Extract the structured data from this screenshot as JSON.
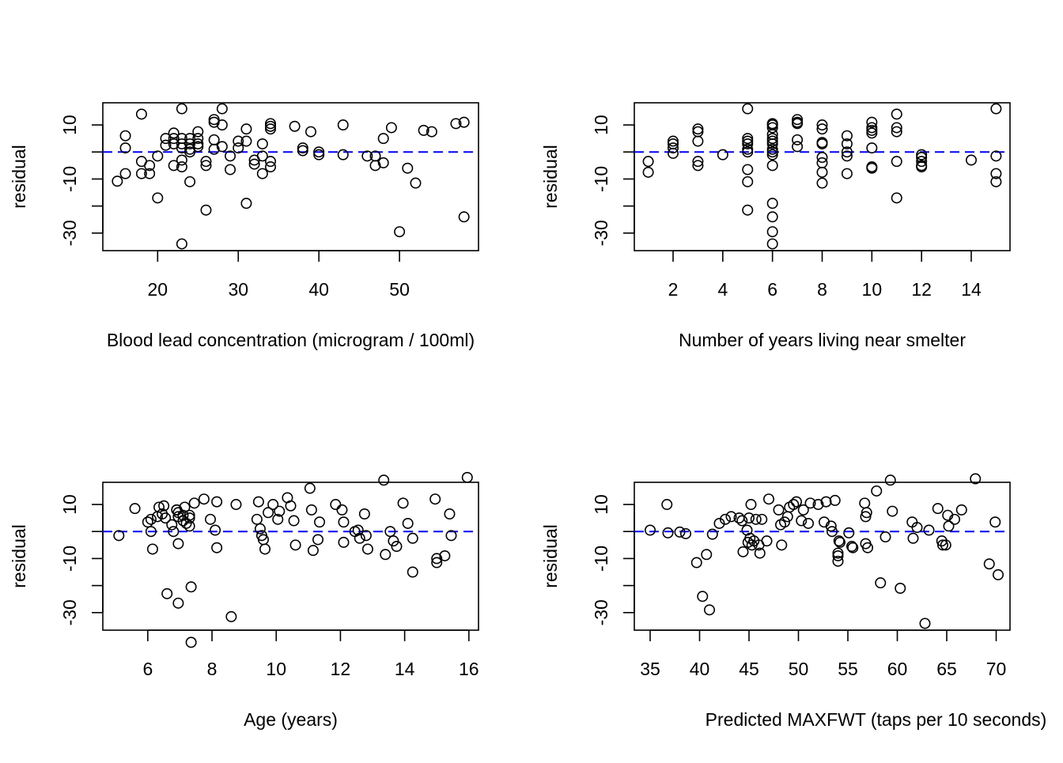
{
  "chart_data": [
    {
      "type": "scatter",
      "xlabel": "Blood lead concentration (microgram / 100ml)",
      "ylabel": "residual",
      "xlim": [
        13.2,
        59.8
      ],
      "ylim": [
        -36.5,
        18.2
      ],
      "xticks": [
        20,
        30,
        40,
        50
      ],
      "yticks": [
        10,
        -10,
        -30
      ],
      "grid": false,
      "reference_line": {
        "y": 0,
        "style": "dashed",
        "color": "#0000ff"
      },
      "points": [
        [
          15,
          -10.8
        ],
        [
          16,
          6
        ],
        [
          16,
          1.5
        ],
        [
          16,
          -8
        ],
        [
          18,
          14
        ],
        [
          18,
          -3.5
        ],
        [
          18,
          -8
        ],
        [
          19,
          -5
        ],
        [
          19,
          -8
        ],
        [
          20,
          -17
        ],
        [
          20,
          -1.5
        ],
        [
          21,
          5
        ],
        [
          21,
          2.5
        ],
        [
          22,
          7
        ],
        [
          22,
          5
        ],
        [
          22,
          3
        ],
        [
          22,
          -5
        ],
        [
          23,
          16
        ],
        [
          23,
          5
        ],
        [
          23,
          3
        ],
        [
          23,
          1.5
        ],
        [
          23,
          -3
        ],
        [
          23,
          -5.5
        ],
        [
          23,
          -34
        ],
        [
          24,
          5
        ],
        [
          24,
          3
        ],
        [
          24,
          1
        ],
        [
          24,
          0
        ],
        [
          24,
          -11
        ],
        [
          25,
          7.5
        ],
        [
          25,
          5
        ],
        [
          25,
          3
        ],
        [
          25,
          2
        ],
        [
          26,
          -3.5
        ],
        [
          26,
          -5
        ],
        [
          26,
          -21.5
        ],
        [
          27,
          12
        ],
        [
          27,
          11
        ],
        [
          27,
          4.5
        ],
        [
          27,
          1
        ],
        [
          28,
          16
        ],
        [
          28,
          10
        ],
        [
          28,
          2
        ],
        [
          29,
          -1.5
        ],
        [
          29,
          -6.5
        ],
        [
          30,
          4
        ],
        [
          30,
          1.5
        ],
        [
          31,
          8.5
        ],
        [
          31,
          4
        ],
        [
          31,
          -19
        ],
        [
          32,
          -3
        ],
        [
          32,
          -4.5
        ],
        [
          33,
          3
        ],
        [
          33,
          -1.5
        ],
        [
          33,
          -8
        ],
        [
          34,
          10.5
        ],
        [
          34,
          9.5
        ],
        [
          34,
          8.5
        ],
        [
          34,
          -3.5
        ],
        [
          34,
          -5.5
        ],
        [
          37,
          9.5
        ],
        [
          38,
          1.5
        ],
        [
          38,
          0.5
        ],
        [
          39,
          7.5
        ],
        [
          40,
          0
        ],
        [
          40,
          -1
        ],
        [
          43,
          10
        ],
        [
          43,
          -1
        ],
        [
          46,
          -1.5
        ],
        [
          47,
          -1.5
        ],
        [
          47,
          -5
        ],
        [
          48,
          5
        ],
        [
          48,
          -4
        ],
        [
          49,
          9
        ],
        [
          50,
          -29.5
        ],
        [
          51,
          -6
        ],
        [
          52,
          -11.5
        ],
        [
          53,
          8
        ],
        [
          54,
          7.5
        ],
        [
          57,
          10.5
        ],
        [
          58,
          11
        ],
        [
          58,
          -24
        ]
      ]
    },
    {
      "type": "scatter",
      "xlabel": "Number of years living near smelter",
      "ylabel": "residual",
      "xlim": [
        0.44,
        15.56
      ],
      "ylim": [
        -36.5,
        18.2
      ],
      "xticks": [
        2,
        4,
        6,
        8,
        10,
        12,
        14
      ],
      "yticks": [
        10,
        -10,
        -30
      ],
      "grid": false,
      "reference_line": {
        "y": 0,
        "style": "dashed",
        "color": "#0000ff"
      },
      "points": [
        [
          1,
          -3.5
        ],
        [
          1,
          -7.5
        ],
        [
          2,
          4
        ],
        [
          2,
          3
        ],
        [
          2,
          1.5
        ],
        [
          2,
          -0.5
        ],
        [
          3,
          8.5
        ],
        [
          3,
          7.5
        ],
        [
          3,
          4
        ],
        [
          3,
          -3.5
        ],
        [
          3,
          -5
        ],
        [
          4,
          -1
        ],
        [
          5,
          16
        ],
        [
          5,
          5
        ],
        [
          5,
          4
        ],
        [
          5,
          3
        ],
        [
          5,
          1
        ],
        [
          5,
          0
        ],
        [
          5,
          -6.5
        ],
        [
          5,
          -11
        ],
        [
          5,
          -21.5
        ],
        [
          6,
          10.5
        ],
        [
          6,
          10
        ],
        [
          6,
          9
        ],
        [
          6,
          6.5
        ],
        [
          6,
          5
        ],
        [
          6,
          4
        ],
        [
          6,
          3
        ],
        [
          6,
          1
        ],
        [
          6,
          0
        ],
        [
          6,
          -1
        ],
        [
          6,
          -5
        ],
        [
          6,
          -19
        ],
        [
          6,
          -24
        ],
        [
          6,
          -29.5
        ],
        [
          6,
          -34
        ],
        [
          7,
          12
        ],
        [
          7,
          11
        ],
        [
          7,
          10.5
        ],
        [
          7,
          4.5
        ],
        [
          7,
          2
        ],
        [
          8,
          10
        ],
        [
          8,
          8.5
        ],
        [
          8,
          3.5
        ],
        [
          8,
          3
        ],
        [
          8,
          -2
        ],
        [
          8,
          -4
        ],
        [
          8,
          -7.5
        ],
        [
          8,
          -11.5
        ],
        [
          9,
          6
        ],
        [
          9,
          3
        ],
        [
          9,
          0
        ],
        [
          9,
          -1.5
        ],
        [
          9,
          -8
        ],
        [
          10,
          11
        ],
        [
          10,
          9
        ],
        [
          10,
          8
        ],
        [
          10,
          7
        ],
        [
          10,
          1.5
        ],
        [
          10,
          -5.5
        ],
        [
          10,
          -6
        ],
        [
          11,
          14
        ],
        [
          11,
          9
        ],
        [
          11,
          7.5
        ],
        [
          11,
          -3.5
        ],
        [
          11,
          -17
        ],
        [
          12,
          -1
        ],
        [
          12,
          -2
        ],
        [
          12,
          -3.5
        ],
        [
          12,
          -5
        ],
        [
          12,
          -5.5
        ],
        [
          14,
          -3
        ],
        [
          15,
          16
        ],
        [
          15,
          -1.5
        ],
        [
          15,
          -8
        ],
        [
          15,
          -11
        ]
      ]
    },
    {
      "type": "scatter",
      "xlabel": "Age (years)",
      "ylabel": "residual",
      "xlim": [
        4.6,
        16.3
      ],
      "ylim": [
        -36.5,
        18.2
      ],
      "xticks": [
        6,
        8,
        10,
        12,
        14,
        16
      ],
      "yticks": [
        10,
        -10,
        -30
      ],
      "grid": false,
      "reference_line": {
        "y": 0,
        "style": "dashed",
        "color": "#0000ff"
      },
      "points": [
        [
          5.1,
          -1.5
        ],
        [
          5.6,
          8.5
        ],
        [
          6.0,
          3.5
        ],
        [
          6.1,
          4.5
        ],
        [
          6.1,
          0
        ],
        [
          6.15,
          -6.5
        ],
        [
          6.3,
          5.5
        ],
        [
          6.35,
          9
        ],
        [
          6.45,
          6.5
        ],
        [
          6.5,
          9.5
        ],
        [
          6.55,
          5
        ],
        [
          6.6,
          -23
        ],
        [
          6.75,
          2.5
        ],
        [
          6.8,
          0
        ],
        [
          6.9,
          8
        ],
        [
          6.9,
          8
        ],
        [
          6.95,
          5.5
        ],
        [
          6.95,
          7
        ],
        [
          6.95,
          -4.5
        ],
        [
          6.95,
          -26.5
        ],
        [
          7.1,
          4
        ],
        [
          7.1,
          6
        ],
        [
          7.15,
          9
        ],
        [
          7.2,
          3
        ],
        [
          7.3,
          6
        ],
        [
          7.3,
          5
        ],
        [
          7.3,
          2
        ],
        [
          7.35,
          -20.5
        ],
        [
          7.35,
          -41
        ],
        [
          7.45,
          10.5
        ],
        [
          7.75,
          12
        ],
        [
          7.95,
          4.5
        ],
        [
          8.1,
          0.5
        ],
        [
          8.15,
          11
        ],
        [
          8.15,
          -6
        ],
        [
          8.6,
          -31.5
        ],
        [
          8.75,
          10
        ],
        [
          9.4,
          4.5
        ],
        [
          9.45,
          11
        ],
        [
          9.5,
          1
        ],
        [
          9.55,
          -1.5
        ],
        [
          9.6,
          -3
        ],
        [
          9.65,
          -6.5
        ],
        [
          9.75,
          7
        ],
        [
          9.9,
          10
        ],
        [
          10.05,
          4.5
        ],
        [
          10.1,
          7.5
        ],
        [
          10.35,
          12.5
        ],
        [
          10.45,
          9.5
        ],
        [
          10.55,
          4
        ],
        [
          10.6,
          -5
        ],
        [
          11.05,
          16
        ],
        [
          11.1,
          8
        ],
        [
          11.15,
          -7
        ],
        [
          11.3,
          -3
        ],
        [
          11.35,
          3.5
        ],
        [
          11.85,
          10
        ],
        [
          12.05,
          8
        ],
        [
          12.1,
          3.5
        ],
        [
          12.1,
          -4
        ],
        [
          12.45,
          0
        ],
        [
          12.55,
          0.5
        ],
        [
          12.6,
          -2.5
        ],
        [
          12.75,
          6.5
        ],
        [
          12.8,
          -1.5
        ],
        [
          12.85,
          -6.5
        ],
        [
          13.35,
          19
        ],
        [
          13.4,
          -8.5
        ],
        [
          13.55,
          0
        ],
        [
          13.65,
          -3.5
        ],
        [
          13.75,
          -5.5
        ],
        [
          13.95,
          10.5
        ],
        [
          14.1,
          3
        ],
        [
          14.25,
          -2.5
        ],
        [
          14.25,
          -15
        ],
        [
          14.95,
          12
        ],
        [
          15.0,
          -10
        ],
        [
          15.0,
          -11.5
        ],
        [
          15.25,
          -9
        ],
        [
          15.4,
          6.5
        ],
        [
          15.45,
          -1.5
        ],
        [
          15.95,
          20
        ]
      ]
    },
    {
      "type": "scatter",
      "xlabel": "Predicted MAXFWT (taps per 10 seconds)",
      "ylabel": "residual",
      "xlim": [
        33.4,
        71.4
      ],
      "ylim": [
        -36.5,
        18.2
      ],
      "xticks": [
        35,
        40,
        45,
        50,
        55,
        60,
        65,
        70
      ],
      "yticks": [
        10,
        -10,
        -30
      ],
      "grid": false,
      "reference_line": {
        "y": 0,
        "style": "dashed",
        "color": "#0000ff"
      },
      "points": [
        [
          35.0,
          0.5
        ],
        [
          36.7,
          10
        ],
        [
          36.8,
          -0.5
        ],
        [
          38.0,
          -0.2
        ],
        [
          38.6,
          -0.8
        ],
        [
          39.7,
          -11.5
        ],
        [
          40.3,
          -24
        ],
        [
          40.7,
          -8.5
        ],
        [
          41.0,
          -29
        ],
        [
          41.3,
          -1
        ],
        [
          42.0,
          3
        ],
        [
          42.6,
          4.5
        ],
        [
          43.2,
          5.5
        ],
        [
          44.0,
          5
        ],
        [
          44.3,
          4
        ],
        [
          44.4,
          -7.5
        ],
        [
          44.8,
          0.5
        ],
        [
          44.9,
          -4
        ],
        [
          45.0,
          5
        ],
        [
          45.1,
          -2.5
        ],
        [
          45.2,
          10
        ],
        [
          45.3,
          -5
        ],
        [
          45.5,
          -3.5
        ],
        [
          45.7,
          4.5
        ],
        [
          46.0,
          -5
        ],
        [
          46.1,
          -8
        ],
        [
          46.3,
          4.5
        ],
        [
          46.8,
          -3.5
        ],
        [
          47.0,
          12
        ],
        [
          48.0,
          8
        ],
        [
          48.2,
          2.5
        ],
        [
          48.3,
          -5
        ],
        [
          48.6,
          3.5
        ],
        [
          48.9,
          5.5
        ],
        [
          49.1,
          9
        ],
        [
          49.5,
          10
        ],
        [
          49.8,
          11
        ],
        [
          50.3,
          4
        ],
        [
          50.5,
          8
        ],
        [
          51.0,
          3
        ],
        [
          51.2,
          10.5
        ],
        [
          52.0,
          10
        ],
        [
          52.6,
          3.5
        ],
        [
          52.8,
          11
        ],
        [
          53.3,
          2
        ],
        [
          53.4,
          0
        ],
        [
          53.7,
          11.5
        ],
        [
          54.0,
          -8
        ],
        [
          54.0,
          -9
        ],
        [
          54.0,
          -11
        ],
        [
          54.1,
          -3.5
        ],
        [
          54.2,
          -4
        ],
        [
          55.1,
          -0.5
        ],
        [
          55.4,
          -5.5
        ],
        [
          55.5,
          -6
        ],
        [
          56.7,
          10.5
        ],
        [
          56.8,
          5.5
        ],
        [
          56.9,
          7
        ],
        [
          56.8,
          -4.5
        ],
        [
          57.0,
          -6
        ],
        [
          57.9,
          15
        ],
        [
          58.3,
          -19
        ],
        [
          58.8,
          -2
        ],
        [
          59.3,
          19
        ],
        [
          59.5,
          7.5
        ],
        [
          60.3,
          -21
        ],
        [
          61.5,
          3.5
        ],
        [
          61.6,
          -2.5
        ],
        [
          62.0,
          1.5
        ],
        [
          62.8,
          -34
        ],
        [
          63.2,
          0.5
        ],
        [
          64.1,
          8.5
        ],
        [
          64.5,
          -3.5
        ],
        [
          64.6,
          -5
        ],
        [
          64.9,
          -5
        ],
        [
          65.1,
          6
        ],
        [
          65.2,
          2
        ],
        [
          65.8,
          4.5
        ],
        [
          66.5,
          8
        ],
        [
          67.9,
          19.5
        ],
        [
          69.3,
          -12
        ],
        [
          69.9,
          3.5
        ],
        [
          70.2,
          -16
        ]
      ]
    }
  ]
}
